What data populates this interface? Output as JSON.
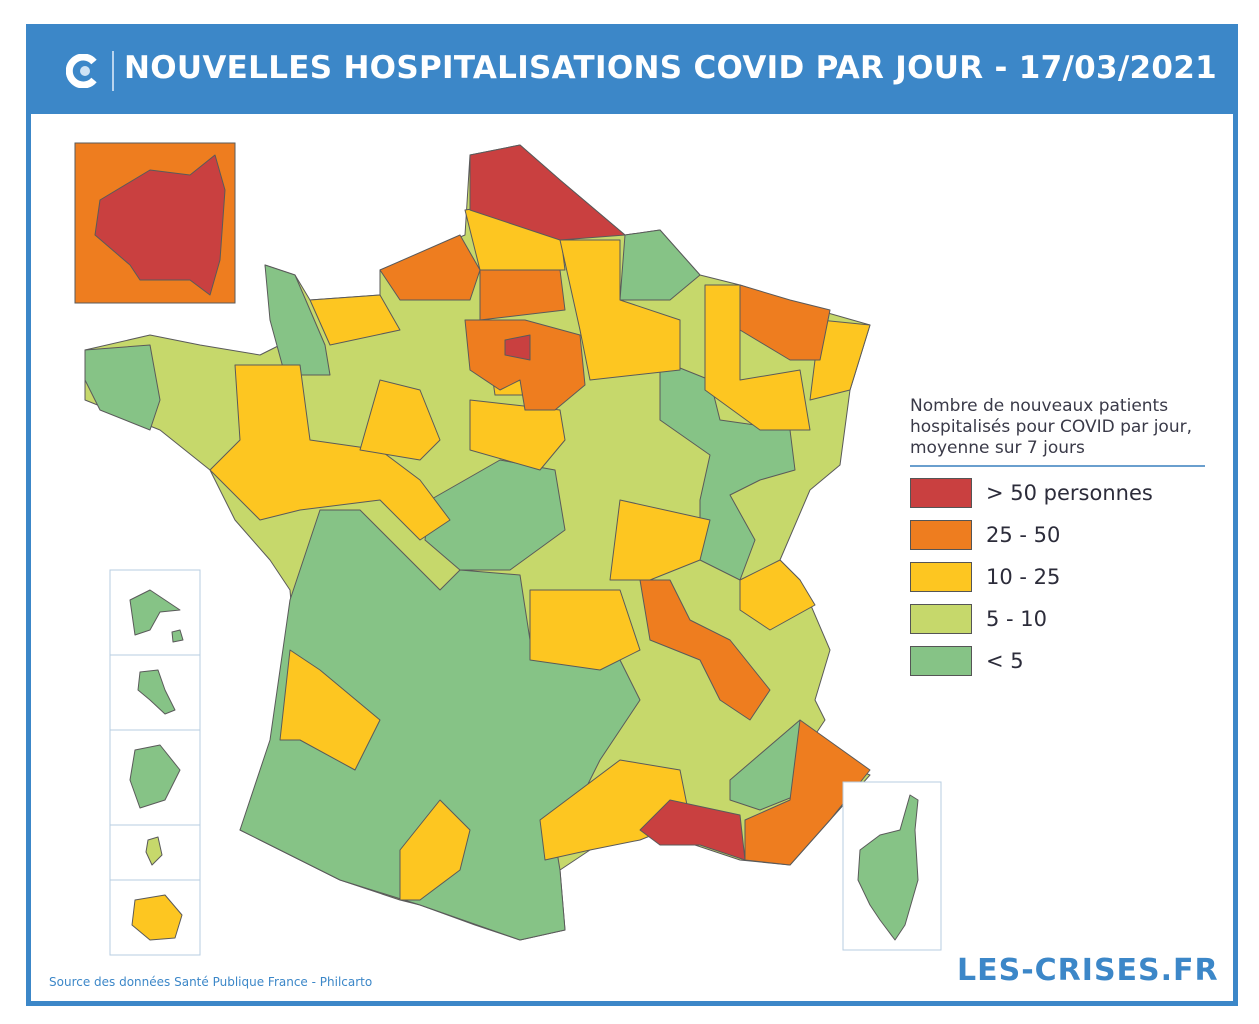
{
  "header": {
    "title": "NOUVELLES HOSPITALISATIONS COVID PAR JOUR - 17/03/2021",
    "logo_icon": "les-crises-c-icon"
  },
  "legend": {
    "title": "Nombre de nouveaux patients hospitalisés pour COVID par jour, moyenne sur 7 jours",
    "items": [
      {
        "label": "> 50 personnes",
        "color": "#c94040"
      },
      {
        "label": "25 - 50",
        "color": "#ee7d1f"
      },
      {
        "label": "10 - 25",
        "color": "#fdc621"
      },
      {
        "label": "5 - 10",
        "color": "#c6d86b"
      },
      {
        "label": "< 5",
        "color": "#86c386"
      }
    ]
  },
  "footer": {
    "source": "Source des données Santé Publique France - Philcarto",
    "brand": "LES-CRISES.FR"
  }
}
